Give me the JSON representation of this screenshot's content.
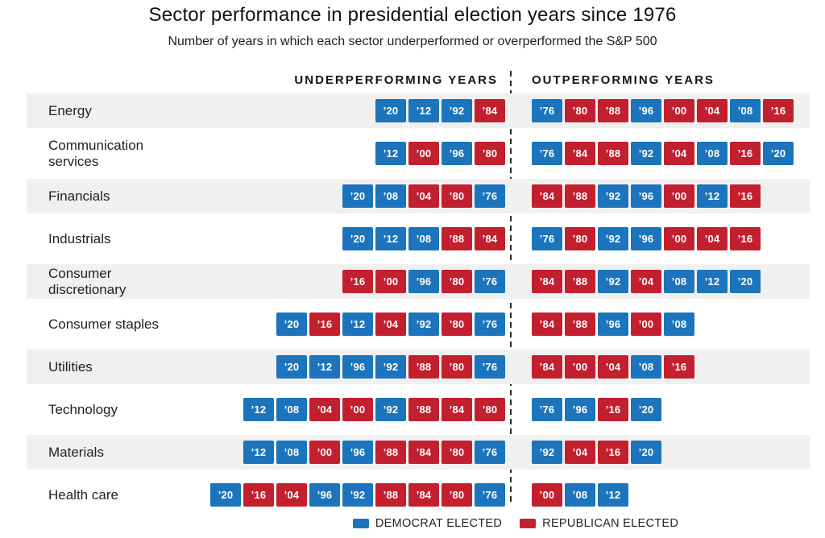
{
  "title": "Sector performance in presidential election years since 1976",
  "subtitle": "Number of years in which each sector underperformed or overperformed the S&P 500",
  "columns": {
    "under_header": "UNDERPERFORMING YEARS",
    "out_header": "OUTPERFORMING YEARS"
  },
  "legend": [
    {
      "label": "DEMOCRAT ELECTED",
      "party": "democrat"
    },
    {
      "label": "REPUBLICAN ELECTED",
      "party": "republican"
    }
  ],
  "colors": {
    "democrat": "#1C75BC",
    "republican": "#C3202F",
    "row_stripe": "#F0F0F1",
    "divider": "#2B2B2B"
  },
  "democrat_years": [
    "’76",
    "’92",
    "’96",
    "’08",
    "’12",
    "’20"
  ],
  "republican_years": [
    "’80",
    "’84",
    "’88",
    "’00",
    "’04",
    "’16"
  ],
  "chart_data": {
    "type": "table",
    "title": "Sector performance in presidential election years since 1976",
    "subtitle": "Number of years in which each sector underperformed or overperformed the S&P 500",
    "legend_position": "bottom",
    "columns": [
      "UNDERPERFORMING YEARS",
      "OUTPERFORMING YEARS"
    ],
    "color_coding": "blue = Democrat elected, red = Republican elected",
    "rows": [
      {
        "sector": "Energy",
        "under_count": 4,
        "out_count": 8,
        "under": [
          "’20",
          "’12",
          "’92",
          "’84"
        ],
        "out": [
          "’76",
          "’80",
          "’88",
          "’96",
          "’00",
          "’04",
          "’08",
          "’16"
        ]
      },
      {
        "sector": "Communication services",
        "under_count": 4,
        "out_count": 8,
        "under": [
          "’12",
          "’00",
          "’96",
          "’80"
        ],
        "out": [
          "’76",
          "’84",
          "’88",
          "’92",
          "’04",
          "’08",
          "’16",
          "’20"
        ]
      },
      {
        "sector": "Financials",
        "under_count": 5,
        "out_count": 7,
        "under": [
          "’20",
          "’08",
          "’04",
          "’80",
          "’76"
        ],
        "out": [
          "’84",
          "’88",
          "’92",
          "’96",
          "’00",
          "’12",
          "’16"
        ]
      },
      {
        "sector": "Industrials",
        "under_count": 5,
        "out_count": 7,
        "under": [
          "’20",
          "’12",
          "’08",
          "’88",
          "’84"
        ],
        "out": [
          "’76",
          "’80",
          "’92",
          "’96",
          "’00",
          "’04",
          "’16"
        ]
      },
      {
        "sector": "Consumer discretionary",
        "under_count": 5,
        "out_count": 7,
        "under": [
          "’16",
          "’00",
          "’96",
          "’80",
          "’76"
        ],
        "out": [
          "’84",
          "’88",
          "’92",
          "’04",
          "’08",
          "’12",
          "’20"
        ]
      },
      {
        "sector": "Consumer staples",
        "under_count": 7,
        "out_count": 5,
        "under": [
          "’20",
          "’16",
          "’12",
          "’04",
          "’92",
          "’80",
          "’76"
        ],
        "out": [
          "’84",
          "’88",
          "’96",
          "’00",
          "’08"
        ]
      },
      {
        "sector": "Utilities",
        "under_count": 7,
        "out_count": 5,
        "under": [
          "’20",
          "’12",
          "’96",
          "’92",
          "’88",
          "’80",
          "’76"
        ],
        "out": [
          "’84",
          "’00",
          "’04",
          "’08",
          "’16"
        ]
      },
      {
        "sector": "Technology",
        "under_count": 8,
        "out_count": 4,
        "under": [
          "’12",
          "’08",
          "’04",
          "’00",
          "’92",
          "’88",
          "’84",
          "’80"
        ],
        "out": [
          "’76",
          "’96",
          "’16",
          "’20"
        ]
      },
      {
        "sector": "Materials",
        "under_count": 8,
        "out_count": 4,
        "under": [
          "’12",
          "’08",
          "’00",
          "’96",
          "’88",
          "’84",
          "’80",
          "’76"
        ],
        "out": [
          "’92",
          "’04",
          "’16",
          "’20"
        ]
      },
      {
        "sector": "Health care",
        "under_count": 9,
        "out_count": 3,
        "under": [
          "’20",
          "’16",
          "’04",
          "’96",
          "’92",
          "’88",
          "’84",
          "’80",
          "’76"
        ],
        "out": [
          "’00",
          "’08",
          "’12"
        ]
      }
    ]
  }
}
